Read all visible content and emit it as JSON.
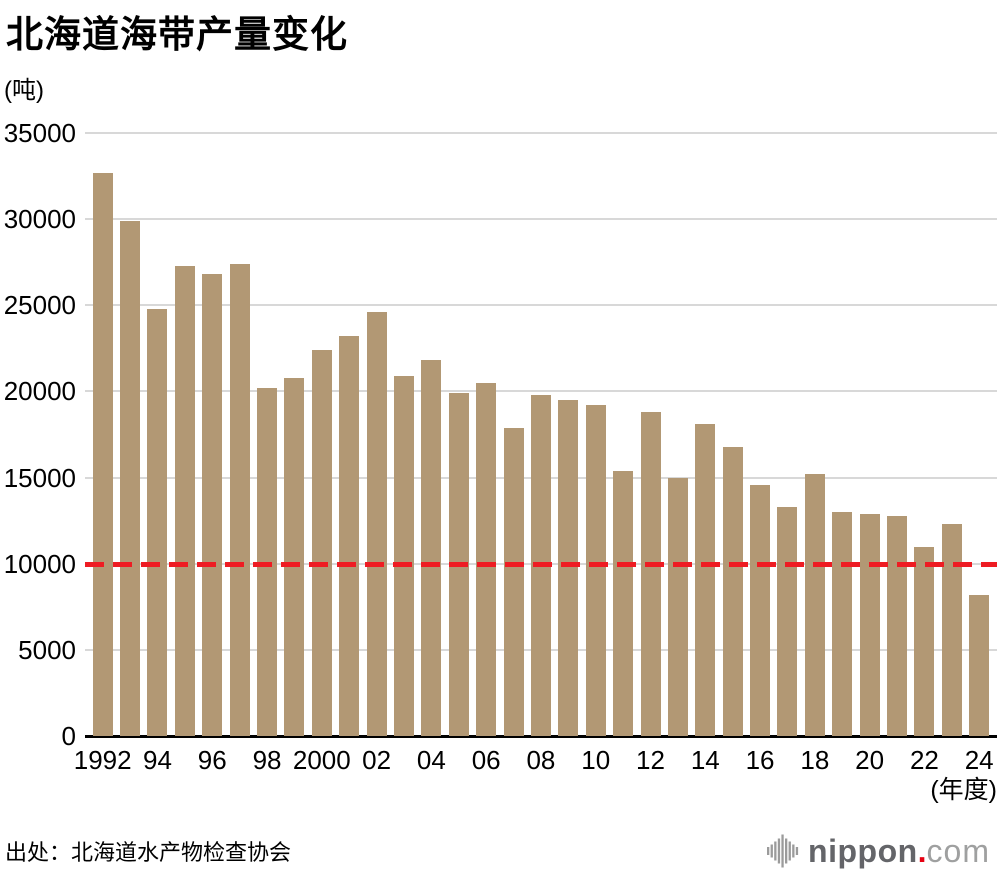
{
  "title": "北海道海带产量变化",
  "y_axis": {
    "unit_label": "(吨)",
    "ticks": [
      "35000",
      "30000",
      "25000",
      "20000",
      "15000",
      "10000",
      "5000",
      "0"
    ]
  },
  "x_axis": {
    "unit_label": "(年度)",
    "labels": [
      "1992",
      "",
      "94",
      "",
      "96",
      "",
      "98",
      "",
      "2000",
      "",
      "02",
      "",
      "04",
      "",
      "06",
      "",
      "08",
      "",
      "10",
      "",
      "12",
      "",
      "14",
      "",
      "16",
      "",
      "18",
      "",
      "20",
      "",
      "22",
      "",
      "24"
    ]
  },
  "source": "出处：北海道水产物检查协会",
  "logo": {
    "name": "nippon",
    "dot": ".",
    "tld": "com"
  },
  "colors": {
    "bar": "#b29874",
    "reference_line": "#ee1c23",
    "grid": "#d8d8d8",
    "axis": "#000000",
    "logo_gray": "#9b9b9b"
  },
  "chart_data": {
    "type": "bar",
    "title": "北海道海带产量变化",
    "ylabel": "(吨)",
    "xlabel": "(年度)",
    "ylim": [
      0,
      35000
    ],
    "ytick_interval": 5000,
    "grid": true,
    "legend": false,
    "reference_line": {
      "value": 10000,
      "style": "dashed",
      "color": "#ee1c23"
    },
    "categories": [
      1992,
      1993,
      1994,
      1995,
      1996,
      1997,
      1998,
      1999,
      2000,
      2001,
      2002,
      2003,
      2004,
      2005,
      2006,
      2007,
      2008,
      2009,
      2010,
      2011,
      2012,
      2013,
      2014,
      2015,
      2016,
      2017,
      2018,
      2019,
      2020,
      2021,
      2022,
      2023,
      2024
    ],
    "values": [
      32700,
      29900,
      24800,
      27300,
      26800,
      27400,
      20200,
      20800,
      22400,
      23200,
      24600,
      20900,
      21800,
      19900,
      20500,
      17900,
      19800,
      19500,
      19200,
      15400,
      18800,
      15000,
      18100,
      16800,
      14600,
      13300,
      15200,
      13000,
      12900,
      12800,
      11000,
      12300,
      8200
    ]
  }
}
